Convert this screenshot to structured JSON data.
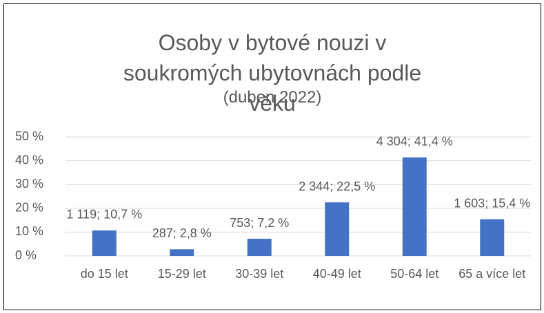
{
  "chart_data": {
    "type": "bar",
    "title": "Osoby v bytové nouzi v soukromých ubytovnách podle věku",
    "subtitle": "(duben 2022)",
    "categories": [
      "do 15 let",
      "15-29 let",
      "30-39 let",
      "40-49 let",
      "50-64 let",
      "65 a více let"
    ],
    "values": [
      10.7,
      2.8,
      7.2,
      22.5,
      41.4,
      15.4
    ],
    "value_labels": [
      "1 119; 10,7 %",
      "287; 2,8 %",
      "753; 7,2 %",
      "2 344; 22,5 %",
      "4 304; 41,4 %",
      "1 603; 15,4 %"
    ],
    "color": "#4472c4",
    "ylim": [
      0,
      50
    ],
    "yticks": [
      {
        "value": 0,
        "label": "0 %"
      },
      {
        "value": 10,
        "label": "10 %"
      },
      {
        "value": 20,
        "label": "20 %"
      },
      {
        "value": 30,
        "label": "30 %"
      },
      {
        "value": 40,
        "label": "40 %"
      },
      {
        "value": 50,
        "label": "50 %"
      }
    ],
    "grid": true
  }
}
